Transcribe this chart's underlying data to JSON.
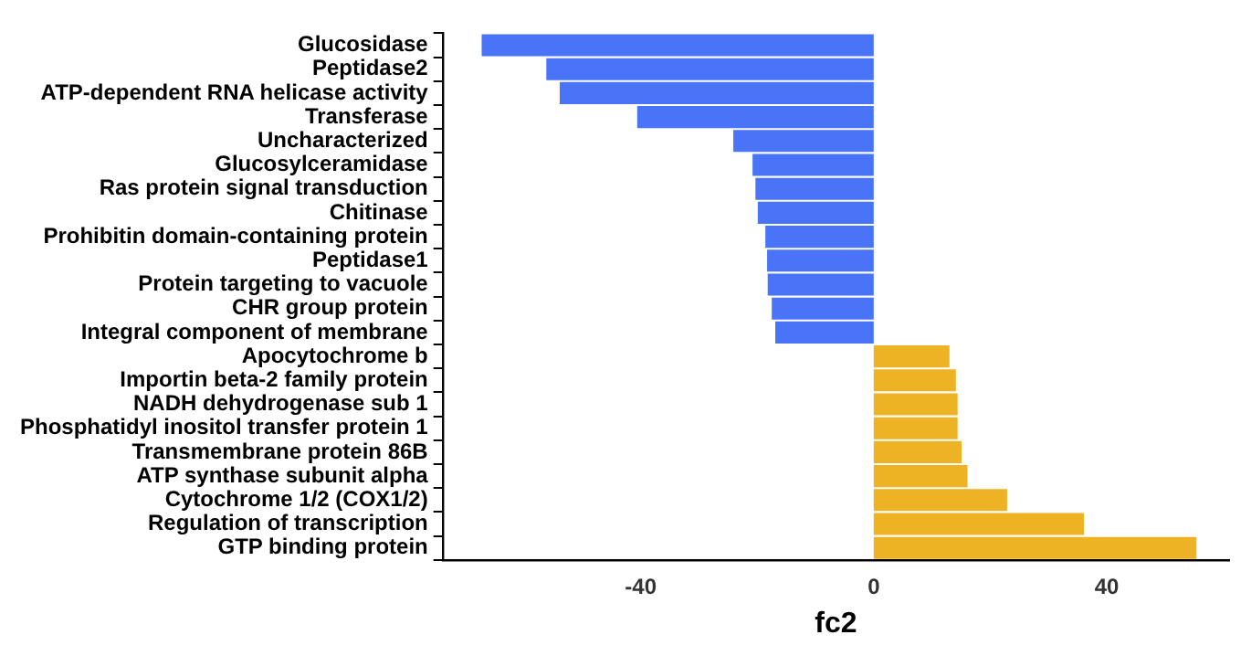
{
  "chart_data": {
    "type": "bar",
    "orientation": "horizontal",
    "xlabel": "fc2",
    "categories": [
      "Glucosidase",
      "Peptidase2",
      "ATP-dependent RNA helicase activity",
      "Transferase",
      "Uncharacterized",
      "Glucosylceramidase",
      "Ras protein signal transduction",
      "Chitinase",
      "Prohibitin domain-containing protein",
      "Peptidase1",
      "Protein targeting to vacuole",
      "CHR group protein",
      "Integral component of membrane",
      "Apocytochrome b",
      "Importin beta-2 family protein",
      "NADH dehydrogenase sub 1",
      "Phosphatidyl inositol transfer protein 1",
      "Transmembrane protein 86B",
      "ATP synthase subunit alpha",
      "Cytochrome 1/2 (COX1/2)",
      "Regulation of transcription",
      "GTP binding protein"
    ],
    "values": [
      -67.3,
      -56.2,
      -53.9,
      -40.6,
      -24.1,
      -20.8,
      -20.3,
      -19.9,
      -18.6,
      -18.3,
      -18.2,
      -17.5,
      -16.9,
      13.0,
      14.1,
      14.4,
      14.4,
      15.1,
      16.1,
      22.9,
      36.1,
      55.4
    ],
    "colors": [
      "#4a74f7",
      "#4a74f7",
      "#4a74f7",
      "#4a74f7",
      "#4a74f7",
      "#4a74f7",
      "#4a74f7",
      "#4a74f7",
      "#4a74f7",
      "#4a74f7",
      "#4a74f7",
      "#4a74f7",
      "#4a74f7",
      "#eeb325",
      "#eeb325",
      "#eeb325",
      "#eeb325",
      "#eeb325",
      "#eeb325",
      "#eeb325",
      "#eeb325",
      "#eeb325"
    ],
    "xlim": [
      -74,
      61
    ],
    "xticks": [
      -40,
      0,
      40
    ],
    "grid": false,
    "legend": false
  }
}
